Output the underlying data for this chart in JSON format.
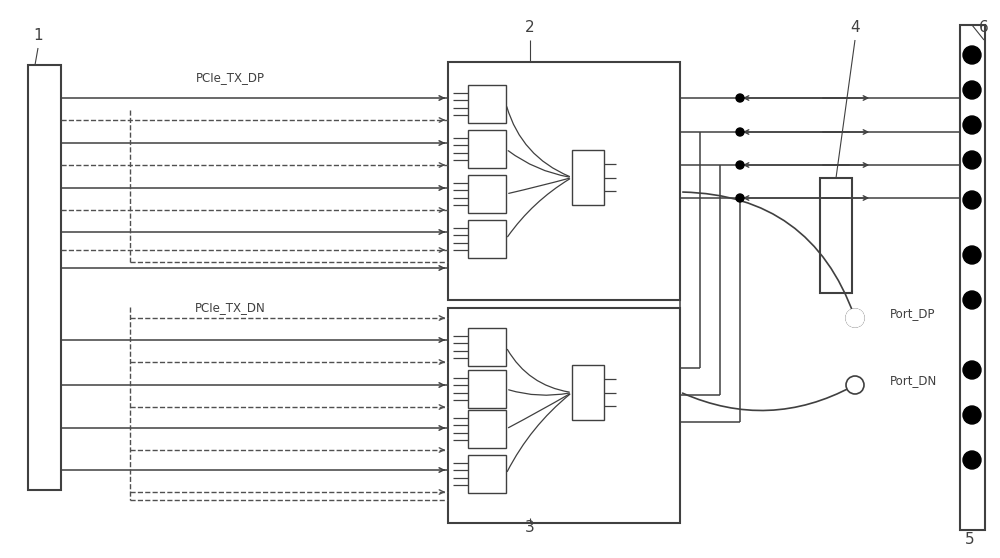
{
  "bg_color": "#ffffff",
  "lc": "#404040",
  "dc": "#505050",
  "fig_width": 10.0,
  "fig_height": 5.58,
  "dpi": 100,
  "label1": "1",
  "label2": "2",
  "label3": "3",
  "label4": "4",
  "label5": "5",
  "label6": "6",
  "label_pcie_tx_dp": "PCIe_TX_DP",
  "label_pcie_tx_dn": "PCIe_TX_DN",
  "label_port_dp": "Port_DP",
  "label_port_dn": "Port_DN"
}
